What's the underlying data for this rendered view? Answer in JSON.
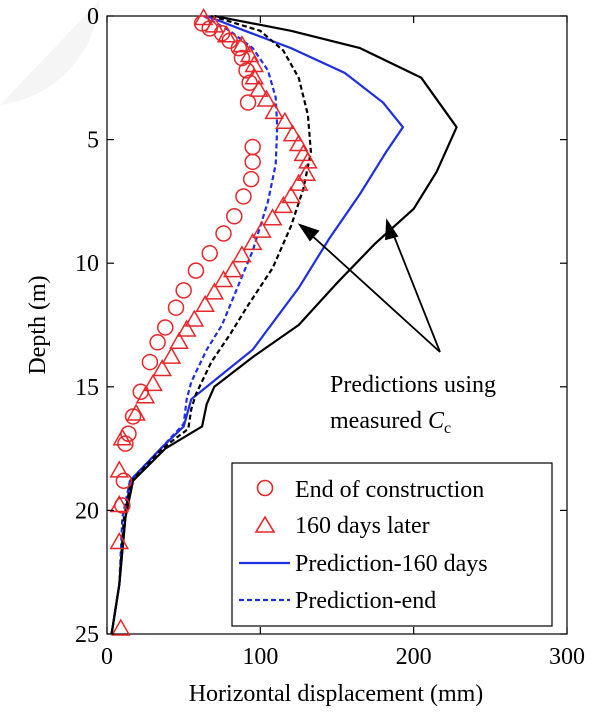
{
  "chart_data": {
    "type": "scatter",
    "title": "",
    "xlabel": "Horizontal displacement (mm)",
    "ylabel": "Depth (m)",
    "xlim": [
      0,
      300
    ],
    "ylim": [
      0,
      25
    ],
    "y_inverted": true,
    "x_ticks": [
      "0",
      "100",
      "200",
      "300"
    ],
    "y_ticks": [
      "0",
      "5",
      "10",
      "15",
      "20",
      "25"
    ],
    "x_tick_values": [
      0,
      100,
      200,
      300
    ],
    "y_tick_values": [
      0,
      5,
      10,
      15,
      20,
      25
    ],
    "grid": false,
    "legend_position": "bottom-right",
    "annotation": {
      "line1": "Predictions using",
      "line2_prefix": "measured ",
      "line2_var": "C",
      "line2_sub": "c"
    },
    "series": [
      {
        "name": "End of construction",
        "kind": "marker-circle",
        "color": "#e8262a",
        "points": [
          [
            62,
            0.3
          ],
          [
            67,
            0.5
          ],
          [
            75,
            0.7
          ],
          [
            80,
            1.0
          ],
          [
            86,
            1.3
          ],
          [
            88,
            1.7
          ],
          [
            91,
            2.2
          ],
          [
            93,
            2.7
          ],
          [
            92,
            3.5
          ],
          [
            95,
            5.3
          ],
          [
            95,
            5.9
          ],
          [
            94,
            6.6
          ],
          [
            89,
            7.3
          ],
          [
            83,
            8.1
          ],
          [
            76,
            8.8
          ],
          [
            67,
            9.6
          ],
          [
            58,
            10.3
          ],
          [
            50,
            11.1
          ],
          [
            45,
            11.8
          ],
          [
            38,
            12.6
          ],
          [
            33,
            13.2
          ],
          [
            28,
            14.0
          ],
          [
            22,
            15.2
          ],
          [
            17,
            16.2
          ],
          [
            14,
            16.9
          ],
          [
            12,
            17.3
          ],
          [
            11,
            18.8
          ],
          [
            10,
            19.8
          ]
        ]
      },
      {
        "name": "160 days later",
        "kind": "marker-triangle",
        "color": "#e8262a",
        "points": [
          [
            63,
            0.1
          ],
          [
            70,
            0.4
          ],
          [
            78,
            0.8
          ],
          [
            88,
            1.2
          ],
          [
            93,
            1.6
          ],
          [
            96,
            2.0
          ],
          [
            96,
            2.5
          ],
          [
            99,
            3.0
          ],
          [
            104,
            3.4
          ],
          [
            109,
            3.9
          ],
          [
            116,
            4.3
          ],
          [
            121,
            4.8
          ],
          [
            125,
            5.2
          ],
          [
            128,
            5.6
          ],
          [
            131,
            5.9
          ],
          [
            130,
            6.4
          ],
          [
            125,
            6.8
          ],
          [
            120,
            7.3
          ],
          [
            115,
            7.7
          ],
          [
            108,
            8.2
          ],
          [
            101,
            8.7
          ],
          [
            95,
            9.2
          ],
          [
            88,
            9.7
          ],
          [
            82,
            10.3
          ],
          [
            76,
            10.7
          ],
          [
            70,
            11.2
          ],
          [
            64,
            11.7
          ],
          [
            57,
            12.3
          ],
          [
            52,
            12.7
          ],
          [
            47,
            13.2
          ],
          [
            42,
            13.8
          ],
          [
            36,
            14.3
          ],
          [
            30,
            14.9
          ],
          [
            25,
            15.4
          ],
          [
            19,
            16.1
          ],
          [
            10,
            17.1
          ],
          [
            8,
            18.4
          ],
          [
            8,
            19.8
          ],
          [
            8,
            21.3
          ],
          [
            9,
            24.8
          ]
        ]
      },
      {
        "name": "Prediction-160 days",
        "kind": "line-solid",
        "color": "#1f2ee0",
        "points": [
          [
            65,
            0
          ],
          [
            90,
            0.6
          ],
          [
            120,
            1.3
          ],
          [
            155,
            2.3
          ],
          [
            180,
            3.5
          ],
          [
            193,
            4.5
          ],
          [
            182,
            5.5
          ],
          [
            165,
            7.2
          ],
          [
            145,
            9.0
          ],
          [
            125,
            11.0
          ],
          [
            95,
            13.5
          ],
          [
            75,
            14.5
          ],
          [
            55,
            15.5
          ],
          [
            50,
            16.6
          ],
          [
            35,
            17.5
          ],
          [
            15,
            18.8
          ],
          [
            12,
            20.3
          ],
          [
            8,
            23
          ],
          [
            3,
            25
          ]
        ]
      },
      {
        "name": "Prediction-end",
        "kind": "line-dashed",
        "color": "#1f2ee0",
        "points": [
          [
            63,
            0
          ],
          [
            80,
            0.6
          ],
          [
            95,
            1.3
          ],
          [
            105,
            2.2
          ],
          [
            110,
            3.3
          ],
          [
            111,
            4.5
          ],
          [
            110,
            6.0
          ],
          [
            105,
            7.5
          ],
          [
            95,
            9.5
          ],
          [
            85,
            11.0
          ],
          [
            75,
            12.5
          ],
          [
            65,
            13.5
          ],
          [
            55,
            14.8
          ],
          [
            52,
            15.5
          ],
          [
            50,
            16.5
          ],
          [
            35,
            17.5
          ],
          [
            15,
            18.8
          ],
          [
            10,
            20.3
          ],
          [
            8,
            23
          ],
          [
            3,
            25
          ]
        ]
      },
      {
        "kind": "line-solid",
        "color": "#000000",
        "points": [
          [
            70,
            0
          ],
          [
            120,
            0.6
          ],
          [
            165,
            1.3
          ],
          [
            205,
            2.5
          ],
          [
            228,
            4.5
          ],
          [
            215,
            6.3
          ],
          [
            200,
            7.8
          ],
          [
            175,
            9.2
          ],
          [
            150,
            10.8
          ],
          [
            125,
            12.5
          ],
          [
            95,
            13.8
          ],
          [
            70,
            15.0
          ],
          [
            65,
            15.7
          ],
          [
            62,
            16.6
          ],
          [
            38,
            17.5
          ],
          [
            17,
            18.8
          ],
          [
            12,
            20.3
          ],
          [
            8,
            23
          ],
          [
            3,
            25
          ]
        ]
      },
      {
        "kind": "line-dashed",
        "color": "#000000",
        "points": [
          [
            68,
            0
          ],
          [
            100,
            0.6
          ],
          [
            115,
            1.4
          ],
          [
            125,
            2.5
          ],
          [
            131,
            4.0
          ],
          [
            133,
            5.5
          ],
          [
            128,
            7.0
          ],
          [
            120,
            8.5
          ],
          [
            108,
            10.2
          ],
          [
            92,
            11.7
          ],
          [
            80,
            12.9
          ],
          [
            68,
            14.0
          ],
          [
            58,
            15.3
          ],
          [
            55,
            15.9
          ],
          [
            53,
            16.7
          ],
          [
            36,
            17.5
          ],
          [
            16,
            18.8
          ],
          [
            11,
            20.3
          ],
          [
            8,
            23
          ],
          [
            3,
            25
          ]
        ]
      }
    ]
  }
}
